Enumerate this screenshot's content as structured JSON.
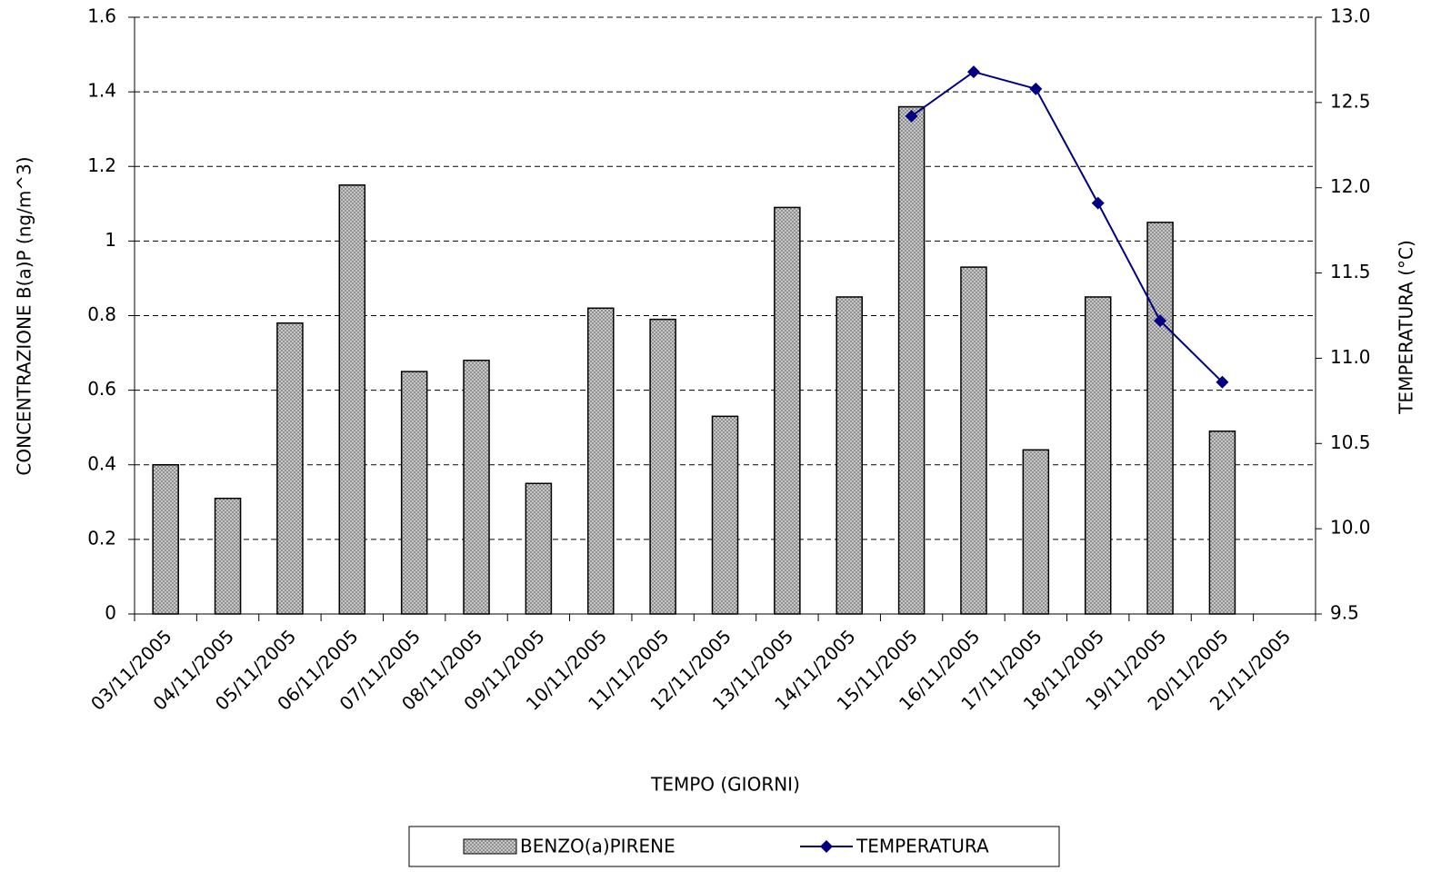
{
  "chart_data": {
    "type": "bar",
    "x_label": "TEMPO (GIORNI)",
    "y_label": "CONCENTRAZIONE B(a)P (ng/m^3)",
    "y2_label": "TEMPERATURA (°C)",
    "categories": [
      "03/11/2005",
      "04/11/2005",
      "05/11/2005",
      "06/11/2005",
      "07/11/2005",
      "08/11/2005",
      "09/11/2005",
      "10/11/2005",
      "11/11/2005",
      "12/11/2005",
      "13/11/2005",
      "14/11/2005",
      "15/11/2005",
      "16/11/2005",
      "17/11/2005",
      "18/11/2005",
      "19/11/2005",
      "20/11/2005",
      "21/11/2005"
    ],
    "series": [
      {
        "name": "BENZO(a)PIRENE",
        "type": "bar",
        "color": "#b0b0b0",
        "values": [
          0.4,
          0.31,
          0.78,
          1.15,
          0.65,
          0.68,
          0.35,
          0.82,
          0.79,
          0.53,
          1.09,
          0.85,
          1.36,
          0.93,
          0.44,
          0.85,
          1.05,
          0.49,
          null
        ]
      },
      {
        "name": "TEMPERATURA",
        "type": "line",
        "color": "#000080",
        "axis": "y2",
        "values": [
          null,
          null,
          null,
          null,
          null,
          null,
          null,
          null,
          null,
          null,
          null,
          null,
          12.42,
          12.68,
          12.58,
          11.91,
          11.22,
          10.86,
          null
        ]
      }
    ],
    "ylim": [
      0,
      1.6
    ],
    "yticks": [
      0,
      0.2,
      0.4,
      0.6,
      0.8,
      1,
      1.2,
      1.4,
      1.6
    ],
    "y2lim": [
      9.5,
      13
    ],
    "y2ticks": [
      9.5,
      {
        "value": 10,
        "label": "10.0"
      },
      10.5,
      {
        "value": 11,
        "label": "11.0"
      },
      11.5,
      {
        "value": 12,
        "label": "12.0"
      },
      12.5,
      {
        "value": 13,
        "label": "13.0"
      }
    ],
    "grid": true,
    "legend": "bottom"
  }
}
